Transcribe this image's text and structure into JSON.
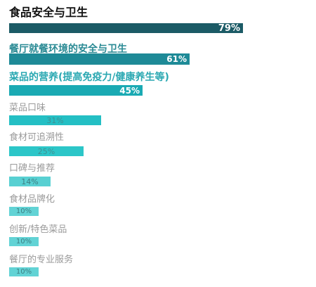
{
  "chart_data": {
    "type": "bar",
    "orientation": "horizontal",
    "categories": [
      "食品安全与卫生",
      "餐厅就餐环境的安全与卫生",
      "菜品的营养(提高免疫力/健康养生等)",
      "菜品口味",
      "食材可追溯性",
      "口碑与推荐",
      "食材品牌化",
      "创新/特色菜品",
      "餐厅的专业服务"
    ],
    "values": [
      79,
      61,
      45,
      31,
      25,
      14,
      10,
      10,
      10
    ],
    "value_labels": [
      "79%",
      "61%",
      "45%",
      "31%",
      "25%",
      "14%",
      "10%",
      "10%",
      "10%"
    ],
    "xlim": [
      0,
      100
    ],
    "unit": "%",
    "colors": {
      "bars": [
        "#1c5b66",
        "#1e8a97",
        "#1aaab3",
        "#24bfc4",
        "#2cc6c8",
        "#58d0d2",
        "#62d3d5",
        "#62d3d5",
        "#62d3d5"
      ],
      "labels": [
        "#111111",
        "#2a8a94",
        "#2aa8b2",
        "#9a9a9a",
        "#9a9a9a",
        "#9a9a9a",
        "#9a9a9a",
        "#9a9a9a",
        "#9a9a9a"
      ],
      "value_text": [
        "#ffffff",
        "#ffffff",
        "#ffffff",
        "#3f8f92",
        "#3f8f92",
        "#3d7f84",
        "#3d7f84",
        "#3d7f84",
        "#3d7f84"
      ]
    }
  }
}
